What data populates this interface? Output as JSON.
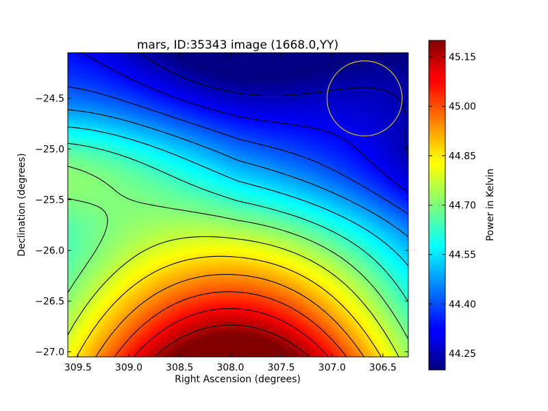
{
  "chart_data": {
    "type": "heatmap",
    "title": "mars, ID:35343 image (1668.0,YY)",
    "xlabel": "Right Ascension (degrees)",
    "ylabel": "Declination (degrees)",
    "colorbar_label": "Power in Kelvin",
    "xlim": [
      309.6,
      306.25
    ],
    "ylim": [
      -27.05,
      -24.05
    ],
    "x_ticks": [
      309.5,
      309.0,
      308.5,
      308.0,
      307.5,
      307.0,
      306.5
    ],
    "x_tick_labels": [
      "309.5",
      "309.0",
      "308.5",
      "308.0",
      "307.5",
      "307.0",
      "306.5"
    ],
    "y_ticks": [
      -24.5,
      -25.0,
      -25.5,
      -26.0,
      -26.5,
      -27.0
    ],
    "y_tick_labels": [
      "−24.5",
      "−25.0",
      "−25.5",
      "−26.0",
      "−26.5",
      "−27.0"
    ],
    "color_range": [
      44.2,
      45.2
    ],
    "colorbar_ticks": [
      45.15,
      45.0,
      44.85,
      44.7,
      44.55,
      44.4,
      44.25
    ],
    "colorbar_tick_labels": [
      "45.15",
      "45.00",
      "44.85",
      "44.70",
      "44.55",
      "44.40",
      "44.25"
    ],
    "colormap": "jet",
    "contour_color": "#000000",
    "marker_circle": {
      "ra": 306.68,
      "dec": -24.5,
      "radius_deg": 0.37,
      "color": "#c8b428"
    },
    "field_features": {
      "saddle": {
        "ra": 308.05,
        "dec": -25.5,
        "value": 44.62
      },
      "ridge_axis_ra": 307.95,
      "north_min": {
        "ra": 307.95,
        "dec": -24.05,
        "value": 44.2
      },
      "south_max": {
        "ra": 307.95,
        "dec": -27.05,
        "value": 45.18
      },
      "west_max": {
        "ra": 309.6,
        "dec": -25.2,
        "value": 44.86
      },
      "east_min": {
        "ra": 306.25,
        "dec": -25.2,
        "value": 44.44
      }
    }
  }
}
